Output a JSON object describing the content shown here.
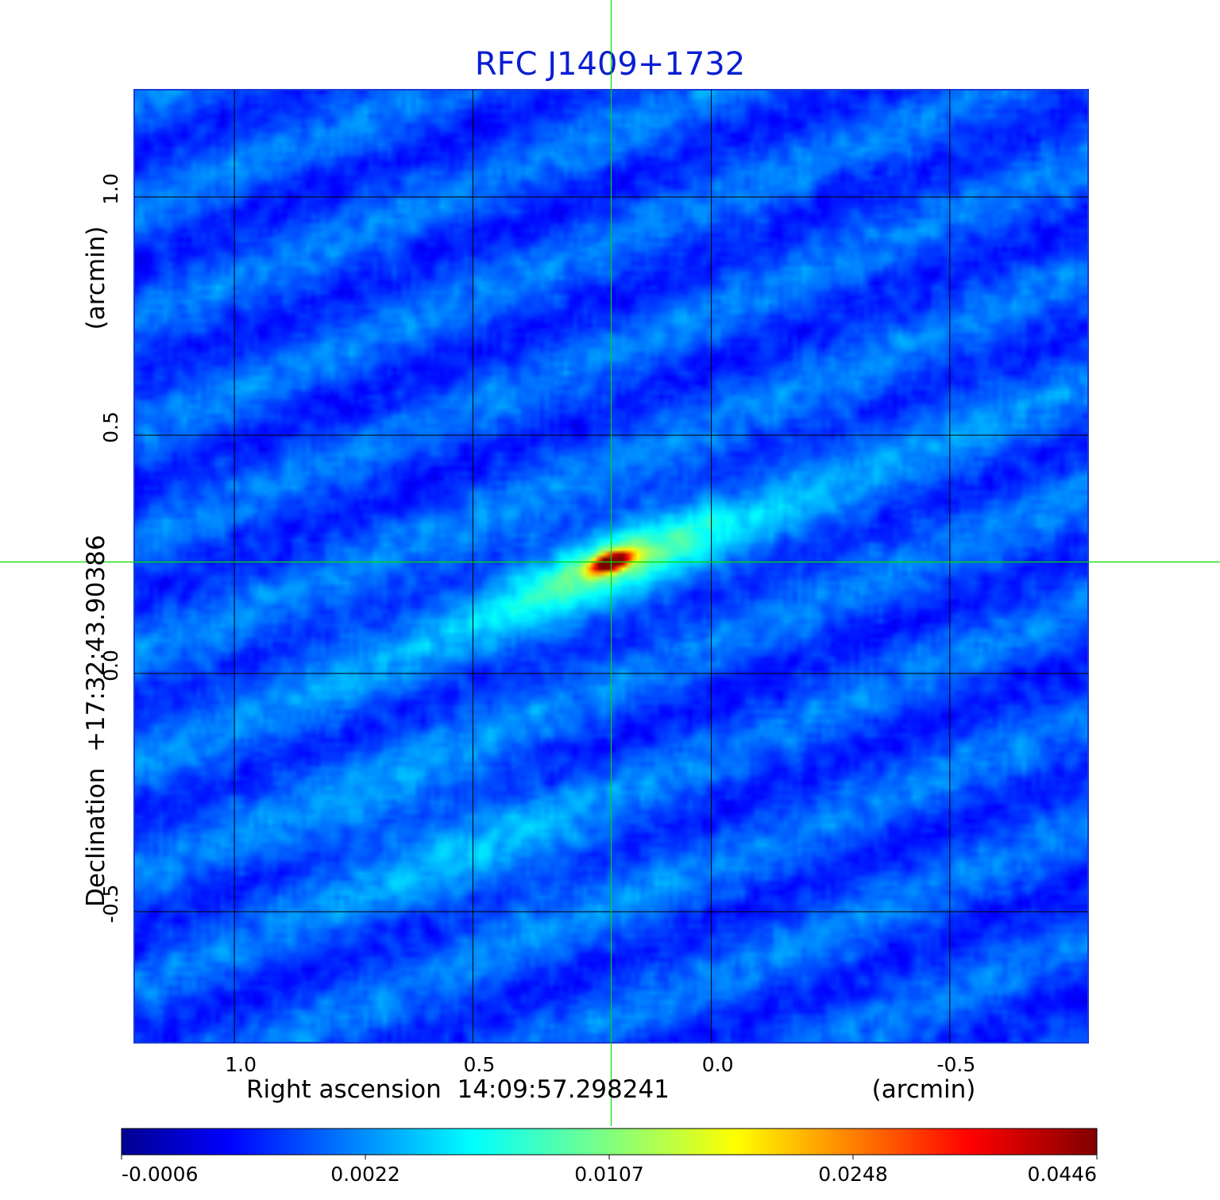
{
  "chart_data": {
    "type": "heatmap",
    "title": "RFC J1409+1732",
    "xlabel": "Right ascension  14:09:57.298241",
    "xunit": "(arcmin)",
    "ylabel": "Declination  +17:32:43.90386",
    "yunit": "(arcmin)",
    "x_axis_direction": "decreasing to the right",
    "xlim": [
      1.21,
      -0.79
    ],
    "ylim": [
      -0.775,
      1.225
    ],
    "x_ticks": [
      1.0,
      0.5,
      0.0,
      -0.5
    ],
    "x_tick_labels": [
      "1.0",
      "0.5",
      "0.0",
      "-0.5"
    ],
    "y_ticks": [
      1.0,
      0.5,
      0.0,
      -0.5
    ],
    "y_tick_labels": [
      "1.0",
      "0.5",
      "0.0",
      "-0.5"
    ],
    "grid": true,
    "crosshair": {
      "x": 0.21,
      "y": 0.234,
      "color": "#00dd00"
    },
    "colormap": "jet",
    "colorbar": {
      "placement": "bottom",
      "tick_labels": [
        "-0.0006",
        "0.0022",
        "0.0107",
        "0.0248",
        "0.0446"
      ],
      "tick_values": [
        -0.0006,
        0.0022,
        0.0107,
        0.0248,
        0.0446
      ]
    },
    "source": {
      "peak_x": 0.21,
      "peak_y": 0.234,
      "peak_value": 0.0446,
      "structure": "elongated emission along position angle about 110 degrees through the peak"
    },
    "colors": {
      "title": "#0a1ed2",
      "grid": "#000000",
      "crosshair": "#00dd00"
    }
  }
}
